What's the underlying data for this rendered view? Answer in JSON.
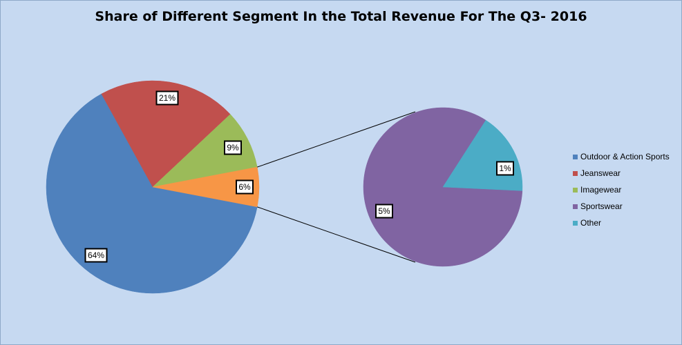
{
  "title": "Share of Different Segment In the Total Revenue For The Q3- 2016",
  "chart_data": {
    "type": "pie",
    "subtype": "pie-of-pie",
    "title": "Share of Different Segment In the Total Revenue For The Q3- 2016",
    "legend_position": "right",
    "main_pie": {
      "slices": [
        {
          "name": "Outdoor & Action Sports",
          "value": 64,
          "label": "64%",
          "color": "#4f81bd"
        },
        {
          "name": "Jeanswear",
          "value": 21,
          "label": "21%",
          "color": "#c0504d"
        },
        {
          "name": "Imagewear",
          "value": 9,
          "label": "9%",
          "color": "#9bbb59"
        },
        {
          "name": "Other (combined)",
          "value": 6,
          "label": "6%",
          "color": "#f79646"
        }
      ]
    },
    "secondary_pie": {
      "slices": [
        {
          "name": "Sportswear",
          "value": 5,
          "label": "5%",
          "color": "#8064a2"
        },
        {
          "name": "Other",
          "value": 1,
          "label": "1%",
          "color": "#4bacc6"
        }
      ]
    },
    "legend": [
      {
        "name": "Outdoor & Action Sports",
        "color": "#4f81bd"
      },
      {
        "name": "Jeanswear",
        "color": "#c0504d"
      },
      {
        "name": "Imagewear",
        "color": "#9bbb59"
      },
      {
        "name": "Sportswear",
        "color": "#8064a2"
      },
      {
        "name": "Other",
        "color": "#4bacc6"
      }
    ]
  }
}
